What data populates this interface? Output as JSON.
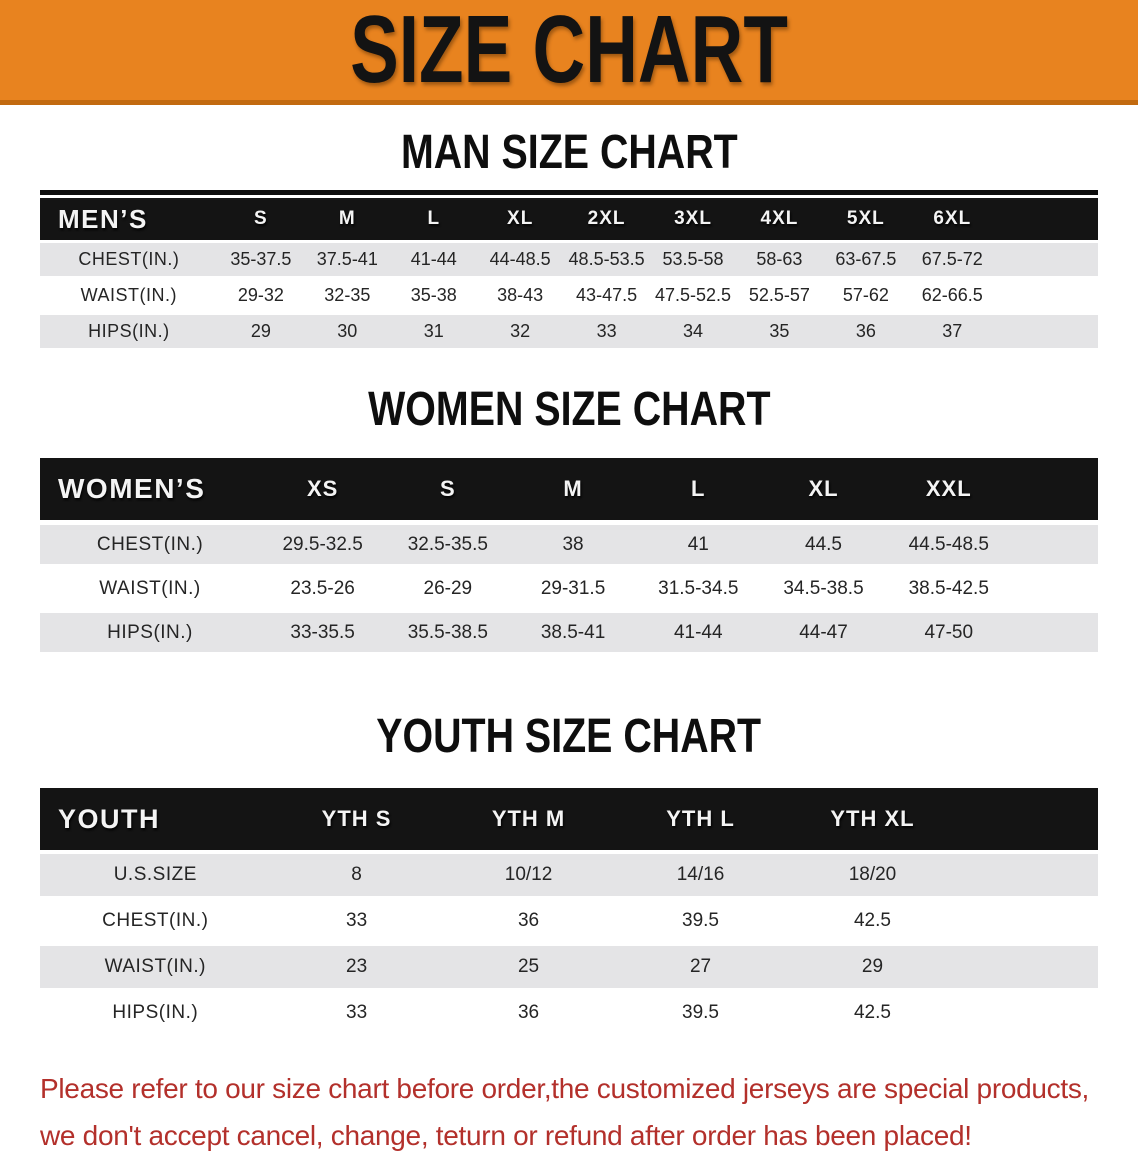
{
  "banner": {
    "title": "SIZE CHART"
  },
  "colors": {
    "banner_orange": "#E8831F",
    "banner_border": "#C26A10",
    "header_black": "#141414",
    "row_gray": "#E4E4E6",
    "footer_red": "#B3302B"
  },
  "sections": [
    {
      "title": "MAN SIZE CHART",
      "table_label": "MEN’S",
      "sizes": [
        "S",
        "M",
        "L",
        "XL",
        "2XL",
        "3XL",
        "4XL",
        "5XL",
        "6XL"
      ],
      "rows": [
        {
          "label": "CHEST(IN.)",
          "values": [
            "35-37.5",
            "37.5-41",
            "41-44",
            "44-48.5",
            "48.5-53.5",
            "53.5-58",
            "58-63",
            "63-67.5",
            "67.5-72"
          ]
        },
        {
          "label": "WAIST(IN.)",
          "values": [
            "29-32",
            "32-35",
            "35-38",
            "38-43",
            "43-47.5",
            "47.5-52.5",
            "52.5-57",
            "57-62",
            "62-66.5"
          ]
        },
        {
          "label": "HIPS(IN.)",
          "values": [
            "29",
            "30",
            "31",
            "32",
            "33",
            "34",
            "35",
            "36",
            "37"
          ]
        }
      ]
    },
    {
      "title": "WOMEN SIZE CHART",
      "table_label": "WOMEN’S",
      "sizes": [
        "XS",
        "S",
        "M",
        "L",
        "XL",
        "XXL"
      ],
      "rows": [
        {
          "label": "CHEST(IN.)",
          "values": [
            "29.5-32.5",
            "32.5-35.5",
            "38",
            "41",
            "44.5",
            "44.5-48.5"
          ]
        },
        {
          "label": "WAIST(IN.)",
          "values": [
            "23.5-26",
            "26-29",
            "29-31.5",
            "31.5-34.5",
            "34.5-38.5",
            "38.5-42.5"
          ]
        },
        {
          "label": "HIPS(IN.)",
          "values": [
            "33-35.5",
            "35.5-38.5",
            "38.5-41",
            "41-44",
            "44-47",
            "47-50"
          ]
        }
      ]
    },
    {
      "title": "YOUTH SIZE CHART",
      "table_label": "YOUTH",
      "sizes": [
        "YTH S",
        "YTH M",
        "YTH L",
        "YTH XL"
      ],
      "rows": [
        {
          "label": "U.S.SIZE",
          "values": [
            "8",
            "10/12",
            "14/16",
            "18/20"
          ]
        },
        {
          "label": "CHEST(IN.)",
          "values": [
            "33",
            "36",
            "39.5",
            "42.5"
          ]
        },
        {
          "label": "WAIST(IN.)",
          "values": [
            "23",
            "25",
            "27",
            "29"
          ]
        },
        {
          "label": "HIPS(IN.)",
          "values": [
            "33",
            "36",
            "39.5",
            "42.5"
          ]
        }
      ]
    }
  ],
  "footer": {
    "line1": "Please refer to our size chart before order,the customized jerseys are special products,",
    "line2": "we don't accept cancel, change, teturn or refund after order has been placed!"
  }
}
